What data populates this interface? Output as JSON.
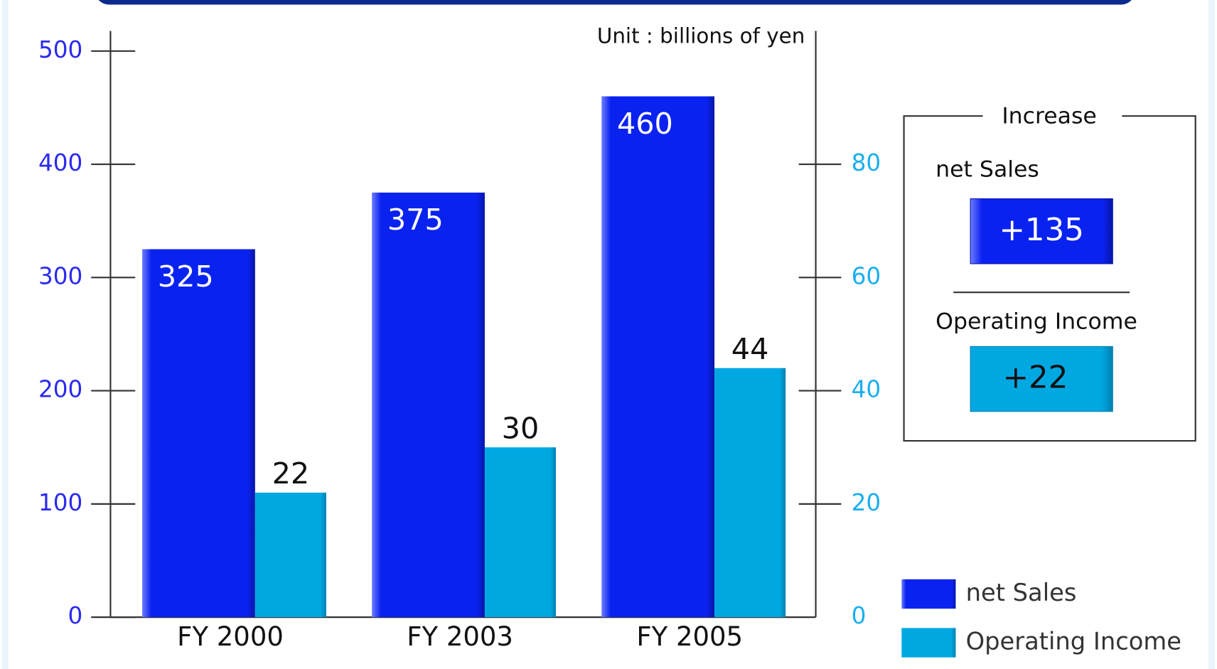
{
  "chart_data": {
    "type": "bar",
    "unit_note": "Unit : billions of yen",
    "categories": [
      "FY 2000",
      "FY 2003",
      "FY 2005"
    ],
    "series": [
      {
        "name": "net Sales",
        "color": "#0a22f0",
        "values": [
          325,
          375,
          460
        ]
      },
      {
        "name": "Operating Income",
        "color": "#00a8e2",
        "axis": "y2",
        "values": [
          22,
          30,
          44
        ]
      }
    ],
    "ylim": [
      0,
      500
    ],
    "yticks": [
      0,
      100,
      200,
      300,
      400,
      500
    ],
    "y2lim": [
      0,
      100
    ],
    "y2ticks": [
      0,
      20,
      40,
      60,
      80
    ],
    "increase_box": {
      "title": "Increase",
      "items": [
        {
          "label": "net Sales",
          "value": "+135"
        },
        {
          "label": "Operating Income",
          "value": "+22"
        }
      ]
    }
  }
}
